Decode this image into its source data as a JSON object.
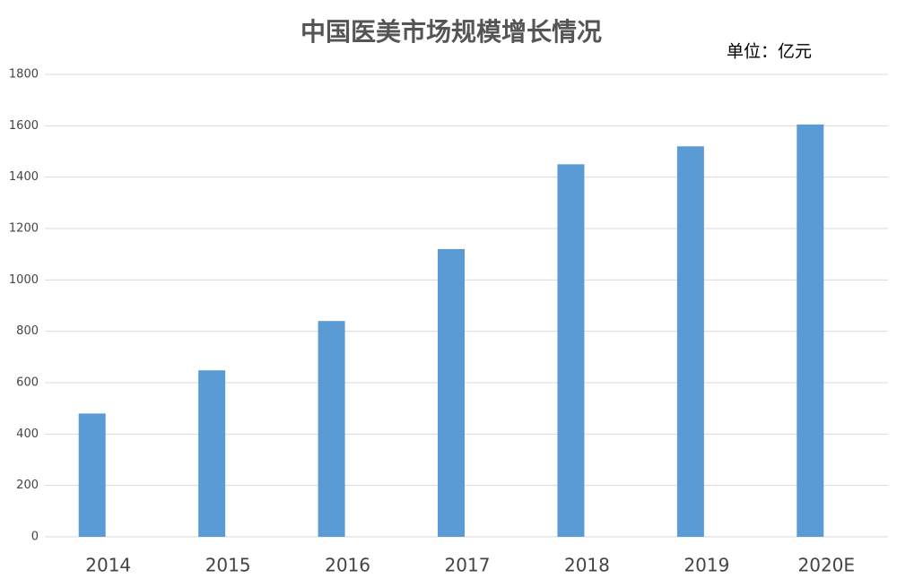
{
  "chart_data": {
    "type": "bar",
    "title": "中国医美市场规模增长情况",
    "subtitle": "单位：亿元",
    "categories": [
      "2014",
      "2015",
      "2016",
      "2017",
      "2018",
      "2019",
      "2020E"
    ],
    "values": [
      480,
      648,
      840,
      1120,
      1450,
      1520,
      1605
    ],
    "color": "#5b9bd5",
    "ylim": [
      0,
      1800
    ],
    "yticks": [
      0,
      200,
      400,
      600,
      800,
      1000,
      1200,
      1400,
      1600,
      1800
    ],
    "grid": true
  }
}
